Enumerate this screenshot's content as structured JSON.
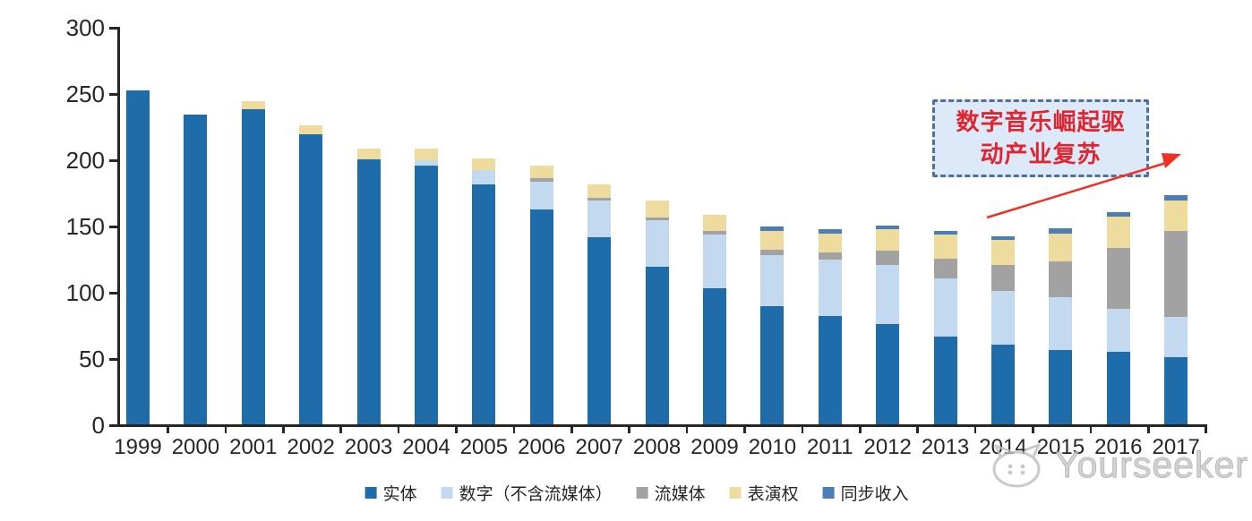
{
  "chart_data": {
    "type": "bar",
    "stacked": true,
    "categories": [
      "1999",
      "2000",
      "2001",
      "2002",
      "2003",
      "2004",
      "2005",
      "2006",
      "2007",
      "2008",
      "2009",
      "2010",
      "2011",
      "2012",
      "2013",
      "2014",
      "2015",
      "2016",
      "2017"
    ],
    "series": [
      {
        "name": "实体",
        "color": "#1f6cab",
        "values": [
          252,
          234,
          238,
          219,
          200,
          195,
          181,
          162,
          141,
          119,
          103,
          89,
          82,
          76,
          66,
          60,
          56,
          55,
          51
        ]
      },
      {
        "name": "数字（不含流媒体）",
        "color": "#c3d9ef",
        "values": [
          0,
          0,
          0,
          0,
          0,
          4,
          11,
          21,
          28,
          35,
          40,
          39,
          42,
          44,
          44,
          41,
          40,
          32,
          30
        ]
      },
      {
        "name": "流媒体",
        "color": "#a2a2a2",
        "values": [
          0,
          0,
          0,
          0,
          0,
          0,
          0,
          3,
          2,
          2,
          3,
          4,
          6,
          11,
          15,
          19,
          27,
          46,
          65
        ]
      },
      {
        "name": "表演权",
        "color": "#eedc9f",
        "values": [
          0,
          0,
          6,
          7,
          8,
          9,
          9,
          9,
          10,
          13,
          12,
          14,
          14,
          16,
          18,
          19,
          21,
          24,
          23
        ]
      },
      {
        "name": "同步收入",
        "color": "#4a7eb5",
        "values": [
          0,
          0,
          0,
          0,
          0,
          0,
          0,
          0,
          0,
          0,
          0,
          3,
          3,
          3,
          3,
          3,
          4,
          3,
          4
        ]
      }
    ],
    "totals": [
      252,
      234,
      244,
      226,
      208,
      208,
      201,
      195,
      181,
      169,
      158,
      149,
      147,
      150,
      146,
      142,
      148,
      160,
      173
    ],
    "ylim": [
      0,
      300
    ],
    "yticks": [
      "0",
      "50",
      "100",
      "150",
      "200",
      "250",
      "300"
    ],
    "grid": false,
    "legend_position": "bottom"
  },
  "annotation": {
    "line1": "数字音乐崛起驱",
    "line2": "动产业复苏",
    "text_color": "#e02531",
    "box_background": "#dbe9f8",
    "box_border_color": "#4e6fa3",
    "arrow_color": "#ee3124"
  },
  "watermark": {
    "text": "Yourseeker",
    "color": "#c9c9c9"
  }
}
